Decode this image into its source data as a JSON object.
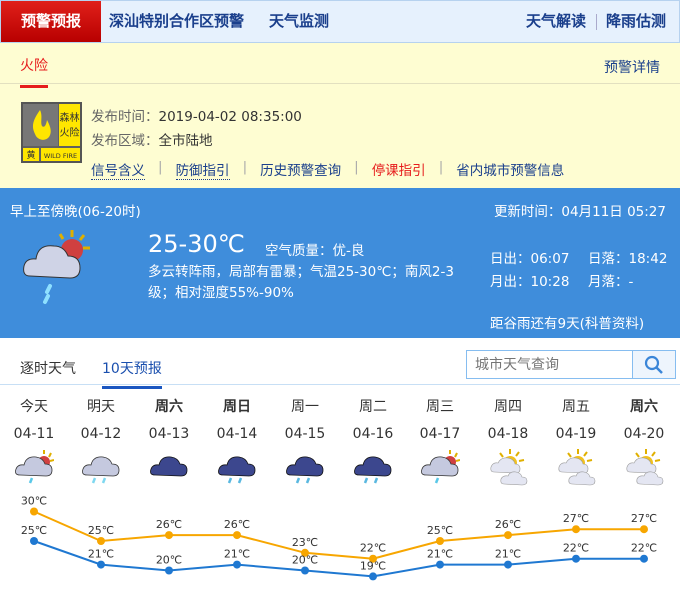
{
  "topnav": {
    "active": "预警预报",
    "items": [
      "深汕特别合作区预警",
      "天气监测"
    ],
    "right": [
      "天气解读",
      "降雨估测"
    ]
  },
  "warning": {
    "tab": "火险",
    "detail": "预警详情",
    "badge": {
      "title": "森林火险",
      "level": "黄",
      "en": "WILD FIRE",
      "color": "#ffe600"
    },
    "time_label": "发布时间：",
    "time": "2019-04-02 08:35:00",
    "area_label": "发布区域：",
    "area": "全市陆地",
    "links": [
      {
        "label": "信号含义",
        "color": "#1a3f8c"
      },
      {
        "label": "防御指引",
        "color": "#1a3f8c"
      },
      {
        "label": "历史预警查询",
        "color": "#1a3f8c"
      },
      {
        "label": "停课指引",
        "color": "#e61c1c"
      },
      {
        "label": "省内城市预警信息",
        "color": "#1a3f8c"
      }
    ]
  },
  "now": {
    "period": "早上至傍晚(06-20时)",
    "update": "更新时间：04月11日 05:27",
    "temp": "25-30℃",
    "aqi": "空气质量：优-良",
    "desc": "多云转阵雨，局部有雷暴；气温25-30℃；南风2-3级；相对湿度55%-90%",
    "sunrise": "日出：06:07",
    "sunset": "日落：18:42",
    "moonrise": "月出：10:28",
    "moonset": "月落：-",
    "solar_term": "距谷雨还有9天(科普资料)",
    "icon": "partly-cloudy-shower"
  },
  "tabs": [
    {
      "label": "逐时天气",
      "active": false
    },
    {
      "label": "10天预报",
      "active": true
    }
  ],
  "search": {
    "placeholder": "城市天气查询",
    "icon": "search-icon"
  },
  "forecast": [
    {
      "day": "今天",
      "date": "04-11",
      "icon": "partly-cloudy-shower",
      "bold": false
    },
    {
      "day": "明天",
      "date": "04-12",
      "icon": "heavy-rain",
      "bold": false
    },
    {
      "day": "周六",
      "date": "04-13",
      "icon": "overcast",
      "bold": true
    },
    {
      "day": "周日",
      "date": "04-14",
      "icon": "overcast-rain",
      "bold": true
    },
    {
      "day": "周一",
      "date": "04-15",
      "icon": "overcast-rain",
      "bold": false
    },
    {
      "day": "周二",
      "date": "04-16",
      "icon": "overcast-rain",
      "bold": false
    },
    {
      "day": "周三",
      "date": "04-17",
      "icon": "partly-cloudy-shower",
      "bold": false
    },
    {
      "day": "周四",
      "date": "04-18",
      "icon": "partly-cloudy",
      "bold": false
    },
    {
      "day": "周五",
      "date": "04-19",
      "icon": "partly-cloudy",
      "bold": false
    },
    {
      "day": "周六",
      "date": "04-20",
      "icon": "partly-cloudy",
      "bold": true
    }
  ],
  "chart_data": {
    "type": "line",
    "categories": [
      "04-11",
      "04-12",
      "04-13",
      "04-14",
      "04-15",
      "04-16",
      "04-17",
      "04-18",
      "04-19",
      "04-20"
    ],
    "unit": "℃",
    "series": [
      {
        "values": [
          30,
          25,
          26,
          26,
          23,
          22,
          25,
          26,
          27,
          27
        ],
        "color": "#f7a600"
      },
      {
        "values": [
          25,
          21,
          20,
          21,
          20,
          19,
          21,
          21,
          22,
          22
        ],
        "color": "#1f78d1"
      }
    ]
  }
}
